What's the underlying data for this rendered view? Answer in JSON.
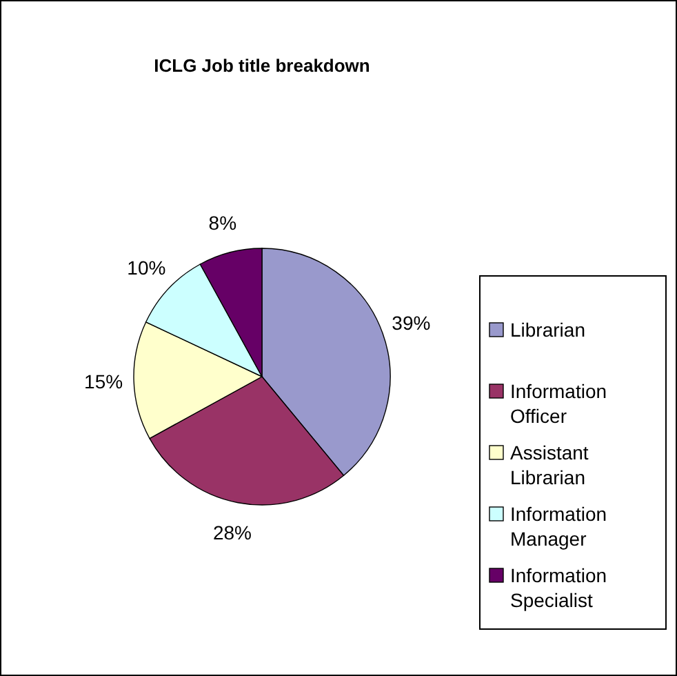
{
  "chart_data": {
    "type": "pie",
    "title": "ICLG Job title breakdown",
    "categories": [
      "Librarian",
      "Information Officer",
      "Assistant Librarian",
      "Information Manager",
      "Information Specialist"
    ],
    "values": [
      39,
      28,
      15,
      10,
      8
    ],
    "colors": [
      "#9999cc",
      "#993366",
      "#ffffcc",
      "#ccffff",
      "#660066"
    ],
    "value_labels": [
      "39%",
      "28%",
      "15%",
      "10%",
      "8%"
    ],
    "legend": "right"
  }
}
